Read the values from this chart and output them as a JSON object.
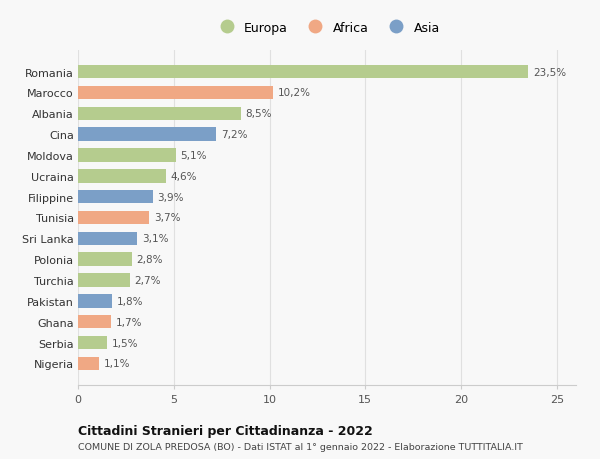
{
  "countries": [
    "Romania",
    "Marocco",
    "Albania",
    "Cina",
    "Moldova",
    "Ucraina",
    "Filippine",
    "Tunisia",
    "Sri Lanka",
    "Polonia",
    "Turchia",
    "Pakistan",
    "Ghana",
    "Serbia",
    "Nigeria"
  ],
  "values": [
    23.5,
    10.2,
    8.5,
    7.2,
    5.1,
    4.6,
    3.9,
    3.7,
    3.1,
    2.8,
    2.7,
    1.8,
    1.7,
    1.5,
    1.1
  ],
  "labels": [
    "23,5%",
    "10,2%",
    "8,5%",
    "7,2%",
    "5,1%",
    "4,6%",
    "3,9%",
    "3,7%",
    "3,1%",
    "2,8%",
    "2,7%",
    "1,8%",
    "1,7%",
    "1,5%",
    "1,1%"
  ],
  "continents": [
    "Europa",
    "Africa",
    "Europa",
    "Asia",
    "Europa",
    "Europa",
    "Asia",
    "Africa",
    "Asia",
    "Europa",
    "Europa",
    "Asia",
    "Africa",
    "Europa",
    "Africa"
  ],
  "colors": {
    "Europa": "#b5cc8e",
    "Africa": "#f0a884",
    "Asia": "#7b9fc7"
  },
  "xlim": [
    0,
    26
  ],
  "xticks": [
    0,
    5,
    10,
    15,
    20,
    25
  ],
  "title": "Cittadini Stranieri per Cittadinanza - 2022",
  "subtitle": "COMUNE DI ZOLA PREDOSA (BO) - Dati ISTAT al 1° gennaio 2022 - Elaborazione TUTTITALIA.IT",
  "bg_color": "#f8f8f8",
  "bar_height": 0.65,
  "grid_color": "#e0e0e0",
  "legend_order": [
    "Europa",
    "Africa",
    "Asia"
  ]
}
